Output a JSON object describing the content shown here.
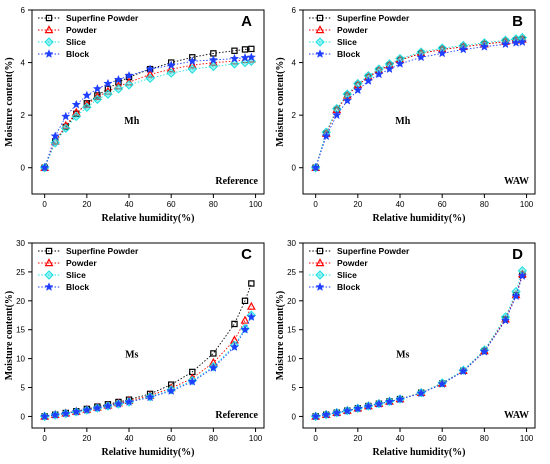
{
  "figure": {
    "legend_labels": [
      "Superfine Powder",
      "Powder",
      "Slice",
      "Block"
    ],
    "colors": {
      "superfine_powder": "#000000",
      "powder": "#ff0000",
      "slice": "#1fe0e0",
      "block": "#1f3fff"
    },
    "marker_shapes": [
      "square",
      "triangle",
      "diamond",
      "star"
    ]
  },
  "chart_data": [
    {
      "panel": "A",
      "type": "line",
      "label": "Mh",
      "corner_note": "Reference",
      "xlabel": "Relative humidity(%)",
      "ylabel": "Moisture content(%)",
      "xlim": [
        -6,
        104
      ],
      "ylim": [
        -1,
        6
      ],
      "xticks": [
        0,
        20,
        40,
        60,
        80,
        100
      ],
      "yticks": [
        0,
        2,
        4,
        6
      ],
      "legend_position": "top-left",
      "series": [
        {
          "name": "Superfine Powder",
          "marker": "square",
          "color": "#000000",
          "x": [
            0,
            5,
            10,
            15,
            20,
            25,
            30,
            35,
            40,
            50,
            60,
            70,
            80,
            90,
            95,
            98
          ],
          "y": [
            0,
            1.0,
            1.55,
            2.05,
            2.45,
            2.75,
            3.0,
            3.25,
            3.45,
            3.75,
            4.0,
            4.2,
            4.35,
            4.45,
            4.5,
            4.52
          ]
        },
        {
          "name": "Powder",
          "marker": "triangle",
          "color": "#ff0000",
          "x": [
            0,
            5,
            10,
            15,
            20,
            25,
            30,
            35,
            40,
            50,
            60,
            70,
            80,
            90,
            95,
            98
          ],
          "y": [
            0,
            1.0,
            1.6,
            2.1,
            2.4,
            2.7,
            2.9,
            3.1,
            3.25,
            3.55,
            3.75,
            3.9,
            4.0,
            4.05,
            4.1,
            4.12
          ]
        },
        {
          "name": "Slice",
          "marker": "diamond",
          "color": "#1fe0e0",
          "x": [
            0,
            5,
            10,
            15,
            20,
            25,
            30,
            35,
            40,
            50,
            60,
            70,
            80,
            90,
            95,
            98
          ],
          "y": [
            0,
            0.95,
            1.5,
            1.95,
            2.3,
            2.6,
            2.8,
            3.0,
            3.15,
            3.4,
            3.6,
            3.75,
            3.85,
            3.95,
            4.0,
            4.05
          ]
        },
        {
          "name": "Block",
          "marker": "star",
          "color": "#1f3fff",
          "x": [
            0,
            5,
            10,
            15,
            20,
            25,
            30,
            35,
            40,
            50,
            60,
            70,
            80,
            90,
            95,
            98
          ],
          "y": [
            0,
            1.2,
            1.95,
            2.4,
            2.75,
            3.0,
            3.2,
            3.35,
            3.5,
            3.75,
            3.9,
            4.05,
            4.1,
            4.15,
            4.18,
            4.2
          ]
        }
      ]
    },
    {
      "panel": "B",
      "type": "line",
      "label": "Mh",
      "corner_note": "WAW",
      "xlabel": "Relative humidity(%)",
      "ylabel": "Moisture content(%)",
      "xlim": [
        -6,
        104
      ],
      "ylim": [
        -1,
        6
      ],
      "xticks": [
        0,
        20,
        40,
        60,
        80,
        100
      ],
      "yticks": [
        0,
        2,
        4,
        6
      ],
      "legend_position": "top-left",
      "series": [
        {
          "name": "Superfine Powder",
          "marker": "square",
          "color": "#000000",
          "x": [
            0,
            5,
            10,
            15,
            20,
            25,
            30,
            35,
            40,
            50,
            60,
            70,
            80,
            90,
            95,
            98
          ],
          "y": [
            0,
            1.3,
            2.2,
            2.75,
            3.15,
            3.45,
            3.7,
            3.9,
            4.1,
            4.35,
            4.5,
            4.6,
            4.7,
            4.8,
            4.85,
            4.88
          ]
        },
        {
          "name": "Powder",
          "marker": "triangle",
          "color": "#ff0000",
          "x": [
            0,
            5,
            10,
            15,
            20,
            25,
            30,
            35,
            40,
            50,
            60,
            70,
            80,
            90,
            95,
            98
          ],
          "y": [
            0,
            1.3,
            2.2,
            2.75,
            3.15,
            3.45,
            3.7,
            3.9,
            4.1,
            4.35,
            4.5,
            4.6,
            4.7,
            4.8,
            4.85,
            4.88
          ]
        },
        {
          "name": "Slice",
          "marker": "diamond",
          "color": "#1fe0e0",
          "x": [
            0,
            5,
            10,
            15,
            20,
            25,
            30,
            35,
            40,
            50,
            60,
            70,
            80,
            90,
            95,
            98
          ],
          "y": [
            0,
            1.35,
            2.25,
            2.8,
            3.2,
            3.5,
            3.75,
            3.95,
            4.15,
            4.4,
            4.55,
            4.65,
            4.75,
            4.85,
            4.9,
            4.95
          ]
        },
        {
          "name": "Block",
          "marker": "star",
          "color": "#1f3fff",
          "x": [
            0,
            5,
            10,
            15,
            20,
            25,
            30,
            35,
            40,
            50,
            60,
            70,
            80,
            90,
            95,
            98
          ],
          "y": [
            0,
            1.2,
            2.0,
            2.55,
            2.95,
            3.3,
            3.55,
            3.75,
            3.95,
            4.2,
            4.35,
            4.5,
            4.6,
            4.7,
            4.75,
            4.78
          ]
        }
      ]
    },
    {
      "panel": "C",
      "type": "line",
      "label": "Ms",
      "corner_note": "Reference",
      "xlabel": "Relative humidity(%)",
      "ylabel": "Moisture content(%)",
      "xlim": [
        -6,
        104
      ],
      "ylim": [
        -2,
        30
      ],
      "xticks": [
        0,
        20,
        40,
        60,
        80,
        100
      ],
      "yticks": [
        0,
        5,
        10,
        15,
        20,
        25,
        30
      ],
      "legend_position": "top-left",
      "series": [
        {
          "name": "Superfine Powder",
          "marker": "square",
          "color": "#000000",
          "x": [
            0,
            5,
            10,
            15,
            20,
            25,
            30,
            35,
            40,
            50,
            60,
            70,
            80,
            90,
            95,
            98
          ],
          "y": [
            0,
            0.3,
            0.6,
            0.9,
            1.3,
            1.7,
            2.1,
            2.5,
            2.9,
            3.9,
            5.5,
            7.7,
            10.9,
            16.0,
            20.0,
            23.0
          ]
        },
        {
          "name": "Powder",
          "marker": "triangle",
          "color": "#ff0000",
          "x": [
            0,
            5,
            10,
            15,
            20,
            25,
            30,
            35,
            40,
            50,
            60,
            70,
            80,
            90,
            95,
            98
          ],
          "y": [
            0,
            0.3,
            0.55,
            0.85,
            1.2,
            1.55,
            1.9,
            2.3,
            2.7,
            3.6,
            4.9,
            6.6,
            9.3,
            13.2,
            16.6,
            19.0
          ]
        },
        {
          "name": "Slice",
          "marker": "diamond",
          "color": "#1fe0e0",
          "x": [
            0,
            5,
            10,
            15,
            20,
            25,
            30,
            35,
            40,
            50,
            60,
            70,
            80,
            90,
            95,
            98
          ],
          "y": [
            0,
            0.25,
            0.5,
            0.8,
            1.1,
            1.45,
            1.8,
            2.15,
            2.5,
            3.4,
            4.6,
            6.2,
            8.6,
            12.3,
            15.2,
            17.5
          ]
        },
        {
          "name": "Block",
          "marker": "star",
          "color": "#1f3fff",
          "x": [
            0,
            5,
            10,
            15,
            20,
            25,
            30,
            35,
            40,
            50,
            60,
            70,
            80,
            90,
            95,
            98
          ],
          "y": [
            0,
            0.25,
            0.5,
            0.8,
            1.1,
            1.45,
            1.8,
            2.15,
            2.5,
            3.3,
            4.4,
            6.0,
            8.4,
            12.0,
            15.0,
            17.2
          ]
        }
      ]
    },
    {
      "panel": "D",
      "type": "line",
      "label": "Ms",
      "corner_note": "WAW",
      "xlabel": "Relative humidity(%)",
      "ylabel": "Moisture content(%)",
      "xlim": [
        -6,
        104
      ],
      "ylim": [
        -2,
        30
      ],
      "xticks": [
        0,
        20,
        40,
        60,
        80,
        100
      ],
      "yticks": [
        0,
        5,
        10,
        15,
        20,
        25,
        30
      ],
      "legend_position": "top-left",
      "series": [
        {
          "name": "Superfine Powder",
          "marker": "square",
          "color": "#000000",
          "x": [
            0,
            5,
            10,
            15,
            20,
            25,
            30,
            35,
            40,
            50,
            60,
            70,
            80,
            90,
            95,
            98
          ],
          "y": [
            0,
            0.3,
            0.65,
            1.0,
            1.4,
            1.8,
            2.2,
            2.6,
            3.0,
            4.1,
            5.7,
            7.9,
            11.3,
            16.8,
            21.0,
            24.5
          ]
        },
        {
          "name": "Powder",
          "marker": "triangle",
          "color": "#ff0000",
          "x": [
            0,
            5,
            10,
            15,
            20,
            25,
            30,
            35,
            40,
            50,
            60,
            70,
            80,
            90,
            95,
            98
          ],
          "y": [
            0,
            0.3,
            0.65,
            1.0,
            1.4,
            1.8,
            2.2,
            2.6,
            3.0,
            4.1,
            5.7,
            7.9,
            11.3,
            16.8,
            21.0,
            24.6
          ]
        },
        {
          "name": "Slice",
          "marker": "diamond",
          "color": "#1fe0e0",
          "x": [
            0,
            5,
            10,
            15,
            20,
            25,
            30,
            35,
            40,
            50,
            60,
            70,
            80,
            90,
            95,
            98
          ],
          "y": [
            0,
            0.3,
            0.65,
            1.0,
            1.4,
            1.8,
            2.2,
            2.6,
            3.0,
            4.1,
            5.8,
            8.0,
            11.5,
            17.2,
            21.6,
            25.2
          ]
        },
        {
          "name": "Block",
          "marker": "star",
          "color": "#1f3fff",
          "x": [
            0,
            5,
            10,
            15,
            20,
            25,
            30,
            35,
            40,
            50,
            60,
            70,
            80,
            90,
            95,
            98
          ],
          "y": [
            0,
            0.3,
            0.6,
            0.95,
            1.35,
            1.75,
            2.15,
            2.55,
            2.95,
            4.0,
            5.6,
            7.8,
            11.2,
            16.6,
            20.8,
            24.3
          ]
        }
      ]
    }
  ]
}
